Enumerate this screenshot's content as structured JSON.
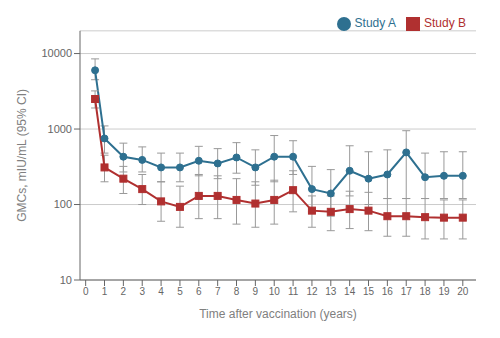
{
  "chart_data": {
    "type": "line",
    "x": [
      0.5,
      1,
      2,
      3,
      4,
      5,
      6,
      7,
      8,
      9,
      10,
      11,
      12,
      13,
      14,
      15,
      16,
      17,
      18,
      19,
      20
    ],
    "series": [
      {
        "name": "Study A",
        "color": "#2e7090",
        "marker": "circle",
        "values": [
          6000,
          750,
          430,
          390,
          310,
          310,
          380,
          350,
          420,
          310,
          430,
          430,
          160,
          140,
          280,
          220,
          250,
          490,
          230,
          240,
          240
        ],
        "ci_low": [
          4500,
          480,
          270,
          270,
          200,
          200,
          240,
          220,
          260,
          180,
          200,
          250,
          80,
          70,
          130,
          100,
          120,
          120,
          120,
          120,
          120
        ],
        "ci_high": [
          8500,
          1100,
          650,
          580,
          480,
          480,
          590,
          550,
          660,
          530,
          820,
          700,
          320,
          290,
          600,
          500,
          530,
          950,
          480,
          500,
          500
        ]
      },
      {
        "name": "Study B",
        "color": "#b03030",
        "marker": "square",
        "values": [
          2500,
          310,
          220,
          160,
          110,
          93,
          130,
          130,
          115,
          103,
          115,
          155,
          83,
          80,
          87,
          83,
          70,
          70,
          68,
          67,
          67
        ],
        "ci_low": [
          1900,
          200,
          140,
          100,
          60,
          50,
          65,
          65,
          55,
          50,
          55,
          80,
          50,
          45,
          48,
          45,
          38,
          38,
          35,
          35,
          35
        ],
        "ci_high": [
          3200,
          450,
          320,
          250,
          200,
          175,
          250,
          240,
          220,
          200,
          210,
          280,
          130,
          130,
          150,
          145,
          120,
          120,
          120,
          115,
          115
        ]
      }
    ],
    "xlabel": "Time after vaccination (years)",
    "ylabel": "GMCs, mIU/mL (95% CI)",
    "xlim": [
      -0.3,
      20.7
    ],
    "ylim": [
      10,
      20000
    ],
    "xticks": [
      0,
      1,
      2,
      3,
      4,
      5,
      6,
      7,
      8,
      9,
      10,
      11,
      12,
      13,
      14,
      15,
      16,
      17,
      18,
      19,
      20
    ],
    "yticks": [
      10,
      100,
      1000,
      10000
    ],
    "log": "y",
    "grid": "y",
    "legend": "upper right"
  }
}
